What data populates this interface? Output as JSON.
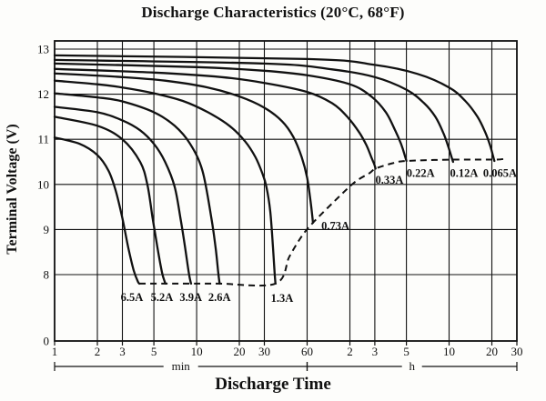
{
  "chart_data": {
    "type": "line",
    "title": "Discharge Characteristics (20°C, 68°F)",
    "xlabel": "Discharge Time",
    "ylabel": "Terminal Voltage (V)",
    "x_scale": "log",
    "x_unit": "minutes",
    "x_range_minutes": [
      1,
      1800
    ],
    "y_axis_break": true,
    "grid": true,
    "y_ticks": [
      {
        "v": 13,
        "label": "13"
      },
      {
        "v": 12,
        "label": "12"
      },
      {
        "v": 11,
        "label": "11"
      },
      {
        "v": 10,
        "label": "10"
      },
      {
        "v": 9,
        "label": "9"
      },
      {
        "v": 8,
        "label": "8"
      },
      {
        "v": 0,
        "label": "0"
      }
    ],
    "x_ticks": [
      {
        "t": 1,
        "label": "1"
      },
      {
        "t": 2,
        "label": "2"
      },
      {
        "t": 3,
        "label": "3"
      },
      {
        "t": 5,
        "label": "5"
      },
      {
        "t": 10,
        "label": "10"
      },
      {
        "t": 20,
        "label": "20"
      },
      {
        "t": 30,
        "label": "30"
      },
      {
        "t": 60,
        "label": "60"
      },
      {
        "t": 120,
        "label": "2"
      },
      {
        "t": 180,
        "label": "3"
      },
      {
        "t": 300,
        "label": "5"
      },
      {
        "t": 600,
        "label": "10"
      },
      {
        "t": 1200,
        "label": "20"
      },
      {
        "t": 1800,
        "label": "30"
      }
    ],
    "unit_brackets": [
      {
        "label": "min",
        "from": 1,
        "to": 60
      },
      {
        "label": "h",
        "from": 60,
        "to": 1800
      }
    ],
    "series": [
      {
        "name": "6.5A",
        "label_at": {
          "t": 3.5,
          "v": 7.5
        },
        "points": [
          [
            1,
            11.04
          ],
          [
            1.5,
            10.9
          ],
          [
            2,
            10.65
          ],
          [
            2.4,
            10.3
          ],
          [
            2.7,
            9.85
          ],
          [
            3.0,
            9.25
          ],
          [
            3.3,
            8.6
          ],
          [
            3.6,
            8.1
          ],
          [
            3.85,
            7.85
          ],
          [
            3.95,
            7.8
          ]
        ]
      },
      {
        "name": "5.2A",
        "label_at": {
          "t": 5.7,
          "v": 7.5
        },
        "points": [
          [
            1,
            11.5
          ],
          [
            2,
            11.3
          ],
          [
            3,
            11.0
          ],
          [
            4,
            10.5
          ],
          [
            4.5,
            10.0
          ],
          [
            4.9,
            9.25
          ],
          [
            5.3,
            8.6
          ],
          [
            5.7,
            8.05
          ],
          [
            5.95,
            7.85
          ],
          [
            6.05,
            7.8
          ]
        ]
      },
      {
        "name": "3.9A",
        "label_at": {
          "t": 9.1,
          "v": 7.5
        },
        "points": [
          [
            1,
            11.72
          ],
          [
            2,
            11.6
          ],
          [
            3,
            11.42
          ],
          [
            4,
            11.2
          ],
          [
            5,
            10.9
          ],
          [
            6,
            10.5
          ],
          [
            7,
            9.95
          ],
          [
            7.7,
            9.25
          ],
          [
            8.3,
            8.6
          ],
          [
            8.8,
            8.05
          ],
          [
            9.05,
            7.85
          ],
          [
            9.15,
            7.8
          ]
        ]
      },
      {
        "name": "2.6A",
        "label_at": {
          "t": 14.5,
          "v": 7.5
        },
        "points": [
          [
            1,
            12.02
          ],
          [
            2,
            11.93
          ],
          [
            3,
            11.84
          ],
          [
            5,
            11.6
          ],
          [
            7,
            11.3
          ],
          [
            9,
            10.9
          ],
          [
            11,
            10.3
          ],
          [
            12.7,
            9.25
          ],
          [
            13.6,
            8.6
          ],
          [
            14.2,
            8.05
          ],
          [
            14.45,
            7.85
          ],
          [
            14.55,
            7.8
          ]
        ]
      },
      {
        "name": "1.3A",
        "label_at": {
          "t": 40,
          "v": 7.48
        },
        "points": [
          [
            1,
            12.3
          ],
          [
            2,
            12.22
          ],
          [
            3,
            12.15
          ],
          [
            5,
            12.02
          ],
          [
            8,
            11.85
          ],
          [
            12,
            11.6
          ],
          [
            17,
            11.3
          ],
          [
            22,
            10.95
          ],
          [
            26,
            10.6
          ],
          [
            29,
            10.25
          ],
          [
            31,
            9.95
          ],
          [
            33,
            9.4
          ],
          [
            34.5,
            8.6
          ],
          [
            35.5,
            8.0
          ],
          [
            35.9,
            7.8
          ]
        ]
      },
      {
        "name": "0.73A",
        "label_at": {
          "t": 95,
          "v": 9.08
        },
        "points": [
          [
            1,
            12.46
          ],
          [
            3,
            12.38
          ],
          [
            6,
            12.3
          ],
          [
            12,
            12.15
          ],
          [
            20,
            11.95
          ],
          [
            30,
            11.7
          ],
          [
            40,
            11.4
          ],
          [
            48,
            11.05
          ],
          [
            55,
            10.6
          ],
          [
            60,
            10.15
          ],
          [
            63,
            9.7
          ],
          [
            65,
            9.35
          ],
          [
            66,
            9.15
          ]
        ]
      },
      {
        "name": "0.33A",
        "label_at": {
          "t": 228,
          "v": 10.1
        },
        "points": [
          [
            1,
            12.56
          ],
          [
            5,
            12.48
          ],
          [
            15,
            12.38
          ],
          [
            30,
            12.25
          ],
          [
            60,
            12.05
          ],
          [
            90,
            11.8
          ],
          [
            115,
            11.5
          ],
          [
            140,
            11.15
          ],
          [
            158,
            10.85
          ],
          [
            170,
            10.6
          ],
          [
            178,
            10.45
          ],
          [
            182,
            10.35
          ]
        ]
      },
      {
        "name": "0.22A",
        "label_at": {
          "t": 378,
          "v": 10.25
        },
        "points": [
          [
            1,
            12.68
          ],
          [
            10,
            12.6
          ],
          [
            30,
            12.52
          ],
          [
            60,
            12.42
          ],
          [
            120,
            12.22
          ],
          [
            170,
            11.95
          ],
          [
            215,
            11.6
          ],
          [
            250,
            11.2
          ],
          [
            275,
            10.9
          ],
          [
            292,
            10.65
          ],
          [
            300,
            10.52
          ]
        ]
      },
      {
        "name": "0.12A",
        "label_at": {
          "t": 765,
          "v": 10.25
        },
        "points": [
          [
            1,
            12.76
          ],
          [
            30,
            12.68
          ],
          [
            90,
            12.55
          ],
          [
            180,
            12.38
          ],
          [
            300,
            12.1
          ],
          [
            400,
            11.8
          ],
          [
            480,
            11.5
          ],
          [
            545,
            11.15
          ],
          [
            590,
            10.85
          ],
          [
            625,
            10.6
          ],
          [
            640,
            10.5
          ]
        ]
      },
      {
        "name": "0.065A",
        "label_at": {
          "t": 1370,
          "v": 10.25
        },
        "points": [
          [
            1,
            12.86
          ],
          [
            60,
            12.78
          ],
          [
            180,
            12.65
          ],
          [
            360,
            12.45
          ],
          [
            600,
            12.15
          ],
          [
            780,
            11.85
          ],
          [
            950,
            11.5
          ],
          [
            1080,
            11.15
          ],
          [
            1170,
            10.85
          ],
          [
            1230,
            10.6
          ],
          [
            1250,
            10.52
          ]
        ]
      }
    ],
    "cutoff_line": {
      "style": "dashed",
      "points": [
        [
          3.95,
          7.8
        ],
        [
          6.05,
          7.8
        ],
        [
          9.15,
          7.8
        ],
        [
          14.55,
          7.8
        ],
        [
          35.9,
          7.8
        ],
        [
          45,
          8.4
        ],
        [
          55,
          8.85
        ],
        [
          66,
          9.15
        ],
        [
          95,
          9.65
        ],
        [
          130,
          10.05
        ],
        [
          165,
          10.25
        ],
        [
          182,
          10.35
        ],
        [
          240,
          10.47
        ],
        [
          300,
          10.52
        ],
        [
          640,
          10.55
        ],
        [
          1250,
          10.55
        ],
        [
          1500,
          10.57
        ]
      ]
    },
    "colors": {
      "ink": "#111111",
      "background": "#fdfdfb"
    }
  }
}
